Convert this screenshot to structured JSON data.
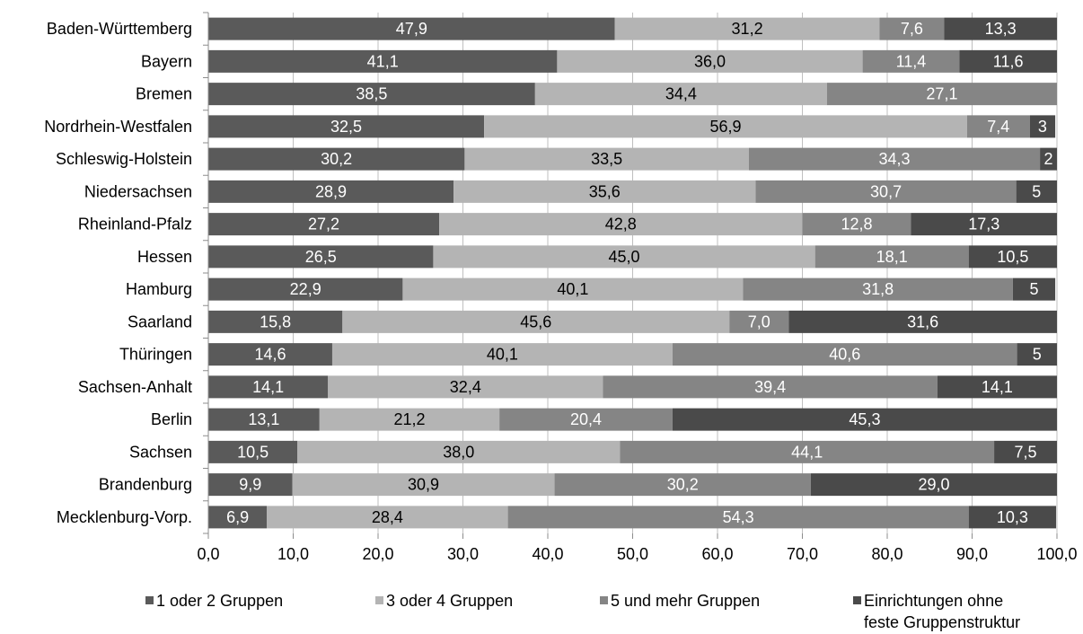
{
  "chart_data": {
    "type": "bar",
    "orientation": "horizontal",
    "stacked": true,
    "categories": [
      "Baden-Württemberg",
      "Bayern",
      "Bremen",
      "Nordrhein-Westfalen",
      "Schleswig-Holstein",
      "Niedersachsen",
      "Rheinland-Pfalz",
      "Hessen",
      "Hamburg",
      "Saarland",
      "Thüringen",
      "Sachsen-Anhalt",
      "Berlin",
      "Sachsen",
      "Brandenburg",
      "Mecklenburg-Vorp."
    ],
    "series": [
      {
        "name": "1 oder 2 Gruppen",
        "color": "#5a5a5a",
        "label_color": "#ffffff",
        "values": [
          47.9,
          41.1,
          38.5,
          32.5,
          30.2,
          28.9,
          27.2,
          26.5,
          22.9,
          15.8,
          14.6,
          14.1,
          13.1,
          10.5,
          9.9,
          6.9
        ],
        "labels": [
          "47,9",
          "41,1",
          "38,5",
          "32,5",
          "30,2",
          "28,9",
          "27,2",
          "26,5",
          "22,9",
          "15,8",
          "14,6",
          "14,1",
          "13,1",
          "10,5",
          "9,9",
          "6,9"
        ]
      },
      {
        "name": "3 oder 4 Gruppen",
        "color": "#b4b4b4",
        "label_color": "#000000",
        "values": [
          31.2,
          36.0,
          34.4,
          56.9,
          33.5,
          35.6,
          42.8,
          45.0,
          40.1,
          45.6,
          40.1,
          32.4,
          21.2,
          38.0,
          30.9,
          28.4
        ],
        "labels": [
          "31,2",
          "36,0",
          "34,4",
          "56,9",
          "33,5",
          "35,6",
          "42,8",
          "45,0",
          "40,1",
          "45,6",
          "40,1",
          "32,4",
          "21,2",
          "38,0",
          "30,9",
          "28,4"
        ]
      },
      {
        "name": "5 und mehr Gruppen",
        "color": "#858585",
        "label_color": "#ffffff",
        "values": [
          7.6,
          11.4,
          27.1,
          7.4,
          34.3,
          30.7,
          12.8,
          18.1,
          31.8,
          7.0,
          40.6,
          39.4,
          20.4,
          44.1,
          30.2,
          54.3
        ],
        "labels": [
          "7,6",
          "11,4",
          "27,1",
          "7,4",
          "34,3",
          "30,7",
          "12,8",
          "18,1",
          "31,8",
          "7,0",
          "40,6",
          "39,4",
          "20,4",
          "44,1",
          "30,2",
          "54,3"
        ]
      },
      {
        "name": "Einrichtungen ohne feste Gruppenstruktur",
        "name_lines": [
          "Einrichtungen ohne",
          "feste Gruppenstruktur"
        ],
        "color": "#4a4a4a",
        "label_color": "#ffffff",
        "values": [
          13.3,
          11.6,
          0,
          3,
          2,
          5,
          17.3,
          10.5,
          5,
          31.6,
          5,
          14.1,
          45.3,
          7.5,
          29.0,
          10.3
        ],
        "labels": [
          "13,3",
          "11,6",
          "",
          "3",
          "2",
          "5",
          "17,3",
          "10,5",
          "5",
          "31,6",
          "5",
          "14,1",
          "45,3",
          "7,5",
          "29,0",
          "10,3"
        ]
      }
    ],
    "xlim": [
      0,
      100
    ],
    "x_ticks": [
      0,
      10,
      20,
      30,
      40,
      50,
      60,
      70,
      80,
      90,
      100
    ],
    "x_tick_labels": [
      "0,0",
      "10,0",
      "20,0",
      "30,0",
      "40,0",
      "50,0",
      "60,0",
      "70,0",
      "80,0",
      "90,0",
      "100,0"
    ],
    "title": "",
    "xlabel": "",
    "ylabel": "",
    "grid": "vertical",
    "legend_position": "bottom"
  }
}
